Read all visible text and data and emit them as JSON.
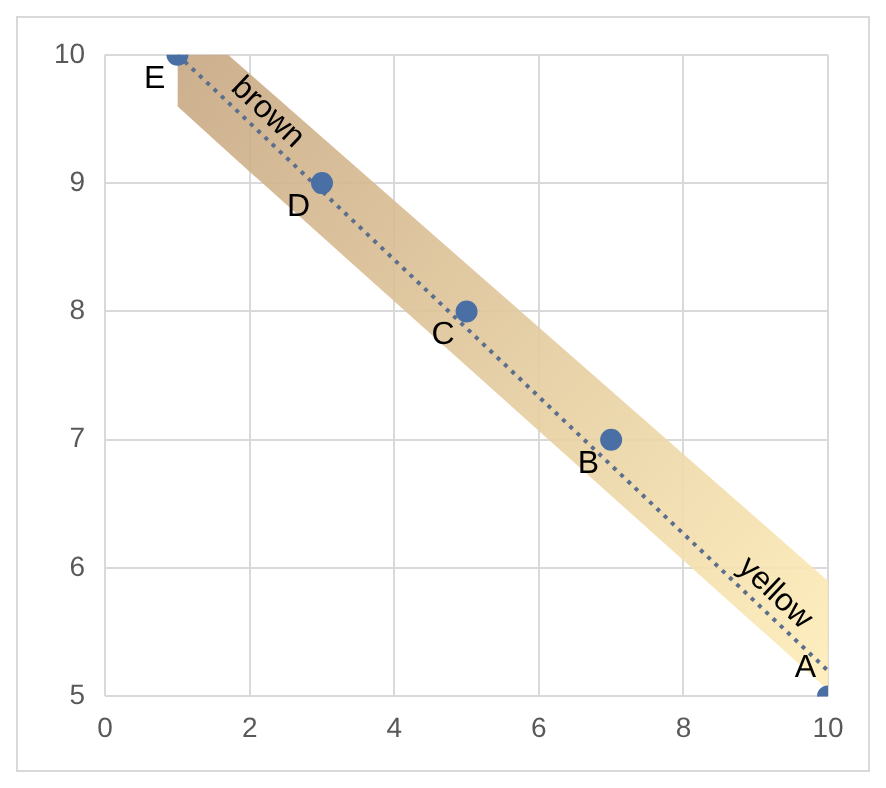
{
  "chart_data": {
    "type": "scatter",
    "xlim": [
      0,
      10
    ],
    "ylim": [
      5,
      10
    ],
    "xticks": [
      0,
      2,
      4,
      6,
      8,
      10
    ],
    "yticks": [
      5,
      6,
      7,
      8,
      9,
      10
    ],
    "grid": true,
    "legend": false,
    "series": [
      {
        "color": "#4a6fa5",
        "marker": "circle",
        "x": [
          1,
          3,
          5,
          7,
          10
        ],
        "values": [
          10,
          9,
          8,
          7,
          5
        ]
      },
      {
        "type": "line",
        "color": "#5b6f8c",
        "marker": "none",
        "line_style": "dotted",
        "x": [
          1,
          1.7,
          10
        ],
        "values": [
          10,
          9.63,
          5.2
        ],
        "lower": [
          9.6,
          9.24,
          5.05
        ],
        "upper": [
          10,
          10,
          5.9
        ]
      }
    ],
    "annotations": [
      {
        "text": "E",
        "x": 1,
        "y": 10
      },
      {
        "text": "D",
        "x": 3,
        "y": 9
      },
      {
        "text": "C",
        "x": 5,
        "y": 8
      },
      {
        "text": "B",
        "x": 7,
        "y": 7
      },
      {
        "text": "A",
        "x": 10,
        "y": 5
      },
      "brown",
      "yellow"
    ]
  }
}
